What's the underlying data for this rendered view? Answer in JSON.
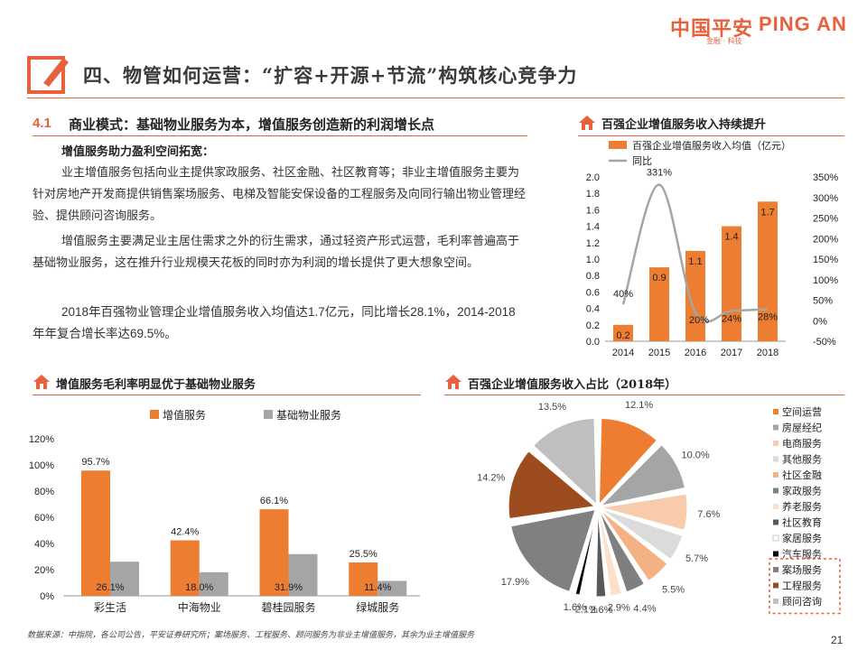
{
  "header": {
    "logo_cn": "中国平安",
    "logo_en": "PING AN",
    "logo_sub": "金融 · 科技",
    "title": "四、物管如何运营：“扩容+开源+节流”构筑核心竞争力"
  },
  "section": {
    "number": "4.1",
    "title": "商业模式：基础物业服务为本，增值服务创造新的利润增长点",
    "subhead": "增值服务助力盈利空间拓宽：",
    "paragraphs": [
      "业主增值服务包括向业主提供家政服务、社区金融、社区教育等；非业主增值服务主要为针对房地产开发商提供销售案场服务、电梯及智能安保设备的工程服务及向同行输出物业管理经验、提供顾问咨询服务。",
      "增值服务主要满足业主居住需求之外的衍生需求，通过轻资产形式运营，毛利率普遍高于基础物业服务，这在推升行业规模天花板的同时亦为利润的增长提供了更大想象空间。",
      "2018年百强物业管理企业增值服务收入均值达1.7亿元，同比增长28.1%，2014-2018年年复合增长率达69.5%。"
    ]
  },
  "panels": {
    "chart1_title": "百强企业增值服务收入持续提升",
    "chart2_title": "增值服务毛利率明显优于基础物业服务",
    "chart3_title": "百强企业增值服务收入占比（2018年）"
  },
  "colors": {
    "accent": "#e8603c",
    "orange": "#ed7d31",
    "gray": "#a5a5a5"
  },
  "chart_data": [
    {
      "type": "bar",
      "categories": [
        "2014",
        "2015",
        "2016",
        "2017",
        "2018"
      ],
      "series": [
        {
          "name": "百强企业增值服务收入均值（亿元）",
          "type": "bar",
          "values": [
            0.2,
            0.9,
            1.1,
            1.4,
            1.7
          ],
          "labels": [
            "0.2",
            "0.9",
            "1.1",
            "1.4",
            "1.7"
          ]
        },
        {
          "name": "同比",
          "type": "line",
          "axis": "right",
          "values": [
            40,
            331,
            20,
            24,
            28
          ],
          "labels": [
            "40%",
            "331%",
            "20%",
            "24%",
            "28%"
          ]
        }
      ],
      "ylim": [
        0,
        2.0
      ],
      "yticks": [
        "0.0",
        "0.2",
        "0.4",
        "0.6",
        "0.8",
        "1.0",
        "1.2",
        "1.4",
        "1.6",
        "1.8",
        "2.0"
      ],
      "y2lim": [
        -50,
        350
      ],
      "y2ticks": [
        "-50%",
        "0%",
        "50%",
        "100%",
        "150%",
        "200%",
        "250%",
        "300%",
        "350%"
      ],
      "legend": "top"
    },
    {
      "type": "bar",
      "categories": [
        "彩生活",
        "中海物业",
        "碧桂园服务",
        "绿城服务"
      ],
      "series": [
        {
          "name": "增值服务",
          "values": [
            95.7,
            42.4,
            66.1,
            25.5
          ],
          "labels": [
            "95.7%",
            "42.4%",
            "66.1%",
            "25.5%"
          ]
        },
        {
          "name": "基础物业服务",
          "values": [
            26.1,
            18.0,
            31.9,
            11.4
          ],
          "labels": [
            "26.1%",
            "18.0%",
            "31.9%",
            "11.4%"
          ]
        }
      ],
      "ylim": [
        0,
        120
      ],
      "yticks": [
        "0%",
        "20%",
        "40%",
        "60%",
        "80%",
        "100%",
        "120%"
      ],
      "legend": "top"
    },
    {
      "type": "pie",
      "slices": [
        {
          "name": "空间运营",
          "value": 12.1,
          "label": "12.1%",
          "color": "#ed7d31"
        },
        {
          "name": "房屋经纪",
          "value": 10.0,
          "label": "10.0%",
          "color": "#a5a5a5"
        },
        {
          "name": "电商服务",
          "value": 7.6,
          "label": "7.6%",
          "color": "#f8cbad"
        },
        {
          "name": "其他服务",
          "value": 5.7,
          "label": "5.7%",
          "color": "#dbdbdb"
        },
        {
          "name": "社区金融",
          "value": 5.5,
          "label": "5.5%",
          "color": "#f4b183"
        },
        {
          "name": "家政服务",
          "value": 4.4,
          "label": "4.4%",
          "color": "#7f7f7f"
        },
        {
          "name": "养老服务",
          "value": 2.9,
          "label": "2.9%",
          "color": "#fbe0cc"
        },
        {
          "name": "社区教育",
          "value": 2.6,
          "label": "2.6%",
          "color": "#595959"
        },
        {
          "name": "家居服务",
          "value": 2.1,
          "label": "2.1%",
          "color": "#ffffff"
        },
        {
          "name": "汽车服务",
          "value": 1.6,
          "label": "1.6%",
          "color": "#000000"
        },
        {
          "name": "案场服务",
          "value": 17.9,
          "label": "17.9%",
          "color": "#808080"
        },
        {
          "name": "工程服务",
          "value": 14.2,
          "label": "14.2%",
          "color": "#9c4c1f"
        },
        {
          "name": "顾问咨询",
          "value": 13.5,
          "label": "13.5%",
          "color": "#bfbfbf"
        }
      ],
      "legend": "right"
    }
  ],
  "footer": {
    "source": "数据来源：中指院，各公司公告，平安证券研究所；案场服务、工程服务、顾问服务为非业主增值服务，其余为业主增值服务",
    "page": "21"
  }
}
